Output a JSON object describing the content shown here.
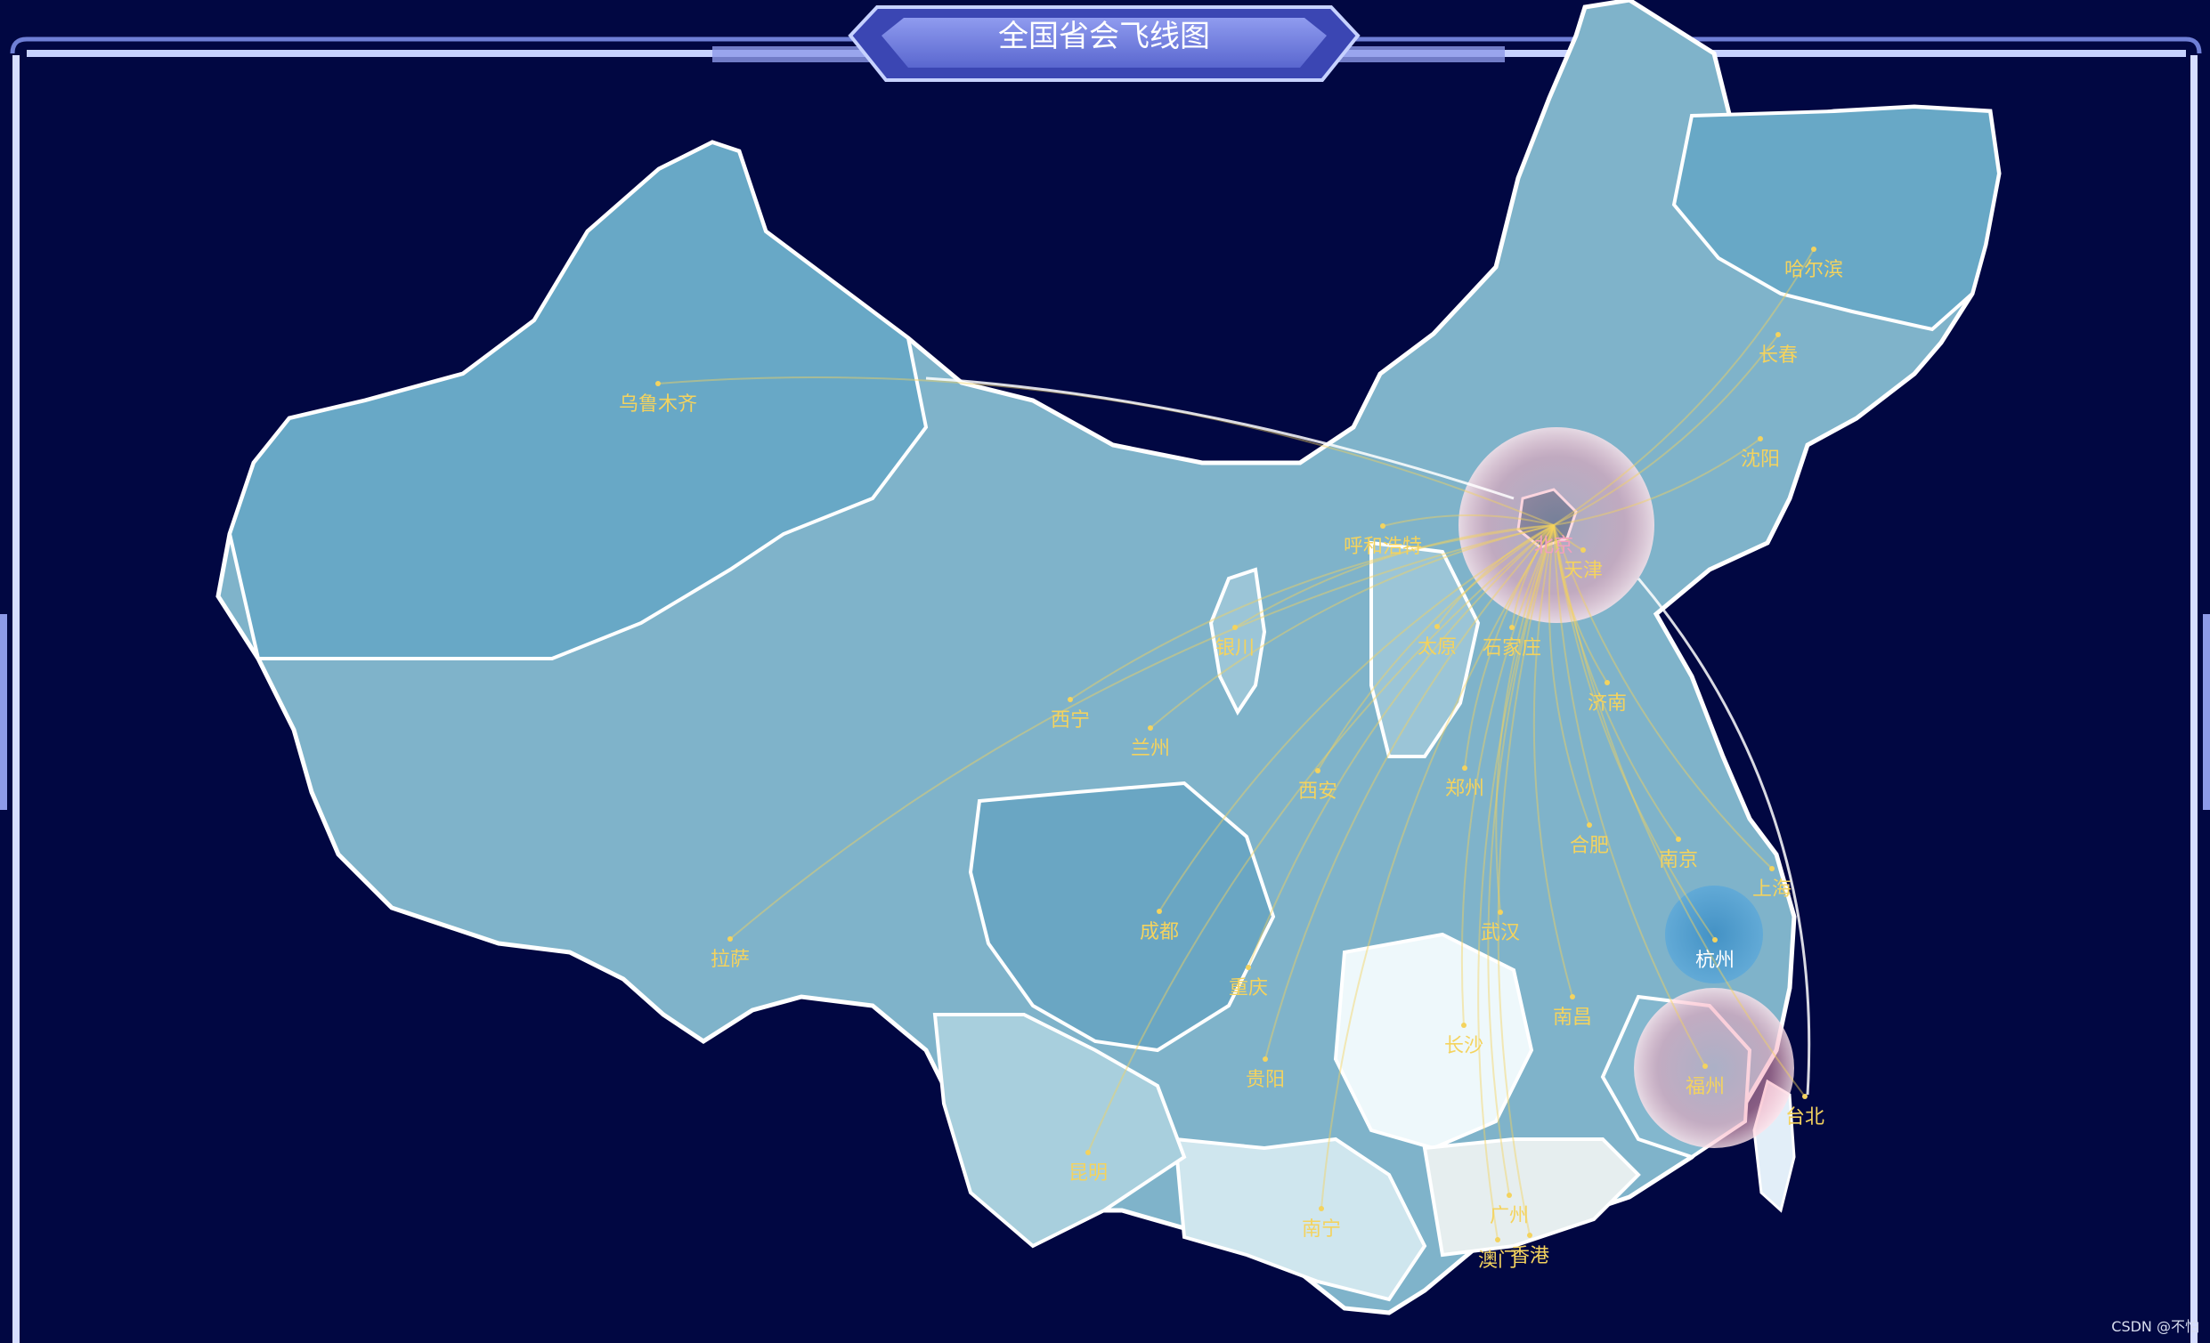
{
  "title": "全国省会飞线图",
  "watermark": "CSDN @不怕",
  "colors": {
    "background": "#010742",
    "frame": "#c7d2ff",
    "province_fill": "#7fb3ca",
    "province_border": "#ffffff",
    "label": "#f4d35e",
    "flyline": "#f4d35e",
    "ripple": "#f3b8c8"
  },
  "map": {
    "hub": "北京",
    "cities": [
      {
        "name": "北京"
      },
      {
        "name": "天津"
      },
      {
        "name": "哈尔滨"
      },
      {
        "name": "长春"
      },
      {
        "name": "沈阳"
      },
      {
        "name": "呼和浩特"
      },
      {
        "name": "石家庄"
      },
      {
        "name": "太原"
      },
      {
        "name": "济南"
      },
      {
        "name": "乌鲁木齐"
      },
      {
        "name": "银川"
      },
      {
        "name": "西宁"
      },
      {
        "name": "兰州"
      },
      {
        "name": "西安"
      },
      {
        "name": "郑州"
      },
      {
        "name": "合肥"
      },
      {
        "name": "南京"
      },
      {
        "name": "上海"
      },
      {
        "name": "拉萨"
      },
      {
        "name": "成都"
      },
      {
        "name": "武汉"
      },
      {
        "name": "杭州"
      },
      {
        "name": "重庆"
      },
      {
        "name": "南昌"
      },
      {
        "name": "长沙"
      },
      {
        "name": "贵阳"
      },
      {
        "name": "福州"
      },
      {
        "name": "台北"
      },
      {
        "name": "昆明"
      },
      {
        "name": "南宁"
      },
      {
        "name": "广州"
      },
      {
        "name": "澳门"
      },
      {
        "name": "香港"
      }
    ]
  }
}
